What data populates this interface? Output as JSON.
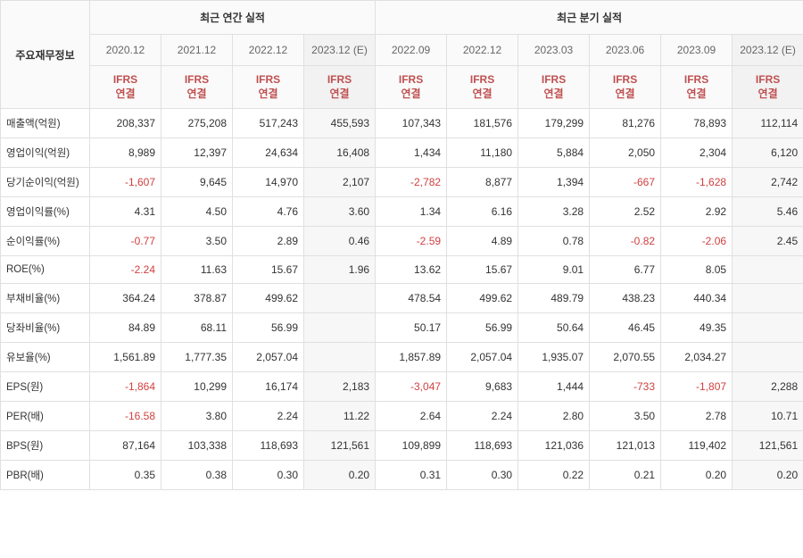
{
  "table": {
    "rowhead_label": "주요재무정보",
    "group_annual": "최근 연간 실적",
    "group_quarter": "최근 분기 실적",
    "annual_periods": [
      "2020.12",
      "2021.12",
      "2022.12",
      "2023.12 (E)"
    ],
    "quarter_periods": [
      "2022.09",
      "2022.12",
      "2023.03",
      "2023.06",
      "2023.09",
      "2023.12 (E)"
    ],
    "unit_label": "IFRS\n연결",
    "estimate_cols": [
      3,
      9
    ],
    "columns_total": 10,
    "colors": {
      "header_bg": "#fafafa",
      "border": "#e0e0e0",
      "text": "#333333",
      "neg": "#d04040",
      "unit_text": "#c05050",
      "est_bg": "#f7f7f7"
    },
    "rows": [
      {
        "label": "매출액(억원)",
        "values": [
          "208,337",
          "275,208",
          "517,243",
          "455,593",
          "107,343",
          "181,576",
          "179,299",
          "81,276",
          "78,893",
          "112,114"
        ],
        "neg": []
      },
      {
        "label": "영업이익(억원)",
        "values": [
          "8,989",
          "12,397",
          "24,634",
          "16,408",
          "1,434",
          "11,180",
          "5,884",
          "2,050",
          "2,304",
          "6,120"
        ],
        "neg": []
      },
      {
        "label": "당기순이익(억원)",
        "values": [
          "-1,607",
          "9,645",
          "14,970",
          "2,107",
          "-2,782",
          "8,877",
          "1,394",
          "-667",
          "-1,628",
          "2,742"
        ],
        "neg": [
          0,
          4,
          7,
          8
        ]
      },
      {
        "label": "영업이익률(%)",
        "values": [
          "4.31",
          "4.50",
          "4.76",
          "3.60",
          "1.34",
          "6.16",
          "3.28",
          "2.52",
          "2.92",
          "5.46"
        ],
        "neg": []
      },
      {
        "label": "순이익률(%)",
        "values": [
          "-0.77",
          "3.50",
          "2.89",
          "0.46",
          "-2.59",
          "4.89",
          "0.78",
          "-0.82",
          "-2.06",
          "2.45"
        ],
        "neg": [
          0,
          4,
          7,
          8
        ]
      },
      {
        "label": "ROE(%)",
        "values": [
          "-2.24",
          "11.63",
          "15.67",
          "1.96",
          "13.62",
          "15.67",
          "9.01",
          "6.77",
          "8.05",
          ""
        ],
        "neg": [
          0
        ]
      },
      {
        "label": "부채비율(%)",
        "values": [
          "364.24",
          "378.87",
          "499.62",
          "",
          "478.54",
          "499.62",
          "489.79",
          "438.23",
          "440.34",
          ""
        ],
        "neg": []
      },
      {
        "label": "당좌비율(%)",
        "values": [
          "84.89",
          "68.11",
          "56.99",
          "",
          "50.17",
          "56.99",
          "50.64",
          "46.45",
          "49.35",
          ""
        ],
        "neg": []
      },
      {
        "label": "유보율(%)",
        "values": [
          "1,561.89",
          "1,777.35",
          "2,057.04",
          "",
          "1,857.89",
          "2,057.04",
          "1,935.07",
          "2,070.55",
          "2,034.27",
          ""
        ],
        "neg": []
      },
      {
        "label": "EPS(원)",
        "values": [
          "-1,864",
          "10,299",
          "16,174",
          "2,183",
          "-3,047",
          "9,683",
          "1,444",
          "-733",
          "-1,807",
          "2,288"
        ],
        "neg": [
          0,
          4,
          7,
          8
        ]
      },
      {
        "label": "PER(배)",
        "values": [
          "-16.58",
          "3.80",
          "2.24",
          "11.22",
          "2.64",
          "2.24",
          "2.80",
          "3.50",
          "2.78",
          "10.71"
        ],
        "neg": [
          0
        ]
      },
      {
        "label": "BPS(원)",
        "values": [
          "87,164",
          "103,338",
          "118,693",
          "121,561",
          "109,899",
          "118,693",
          "121,036",
          "121,013",
          "119,402",
          "121,561"
        ],
        "neg": []
      },
      {
        "label": "PBR(배)",
        "values": [
          "0.35",
          "0.38",
          "0.30",
          "0.20",
          "0.31",
          "0.30",
          "0.22",
          "0.21",
          "0.20",
          "0.20"
        ],
        "neg": []
      }
    ]
  }
}
